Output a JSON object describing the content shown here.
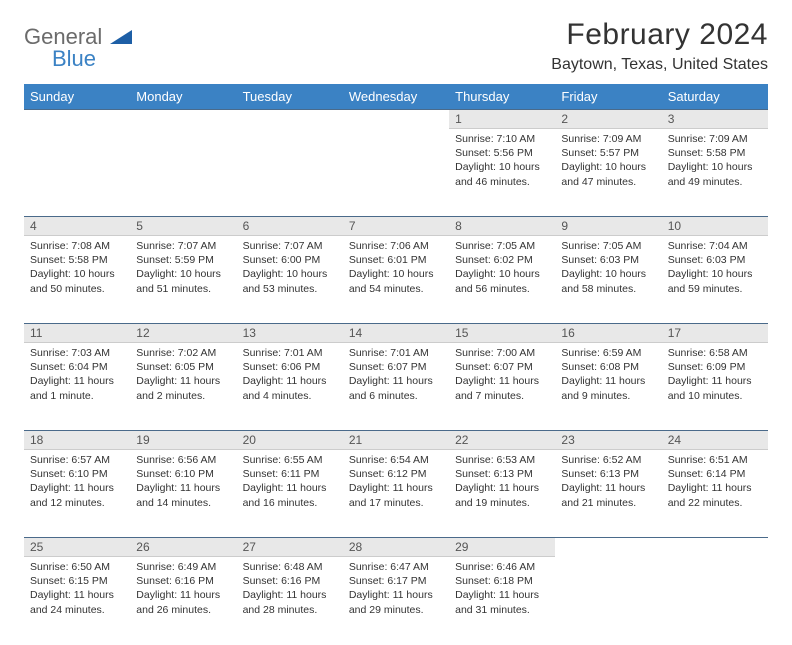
{
  "header": {
    "logo_general": "General",
    "logo_blue": "Blue",
    "month_title": "February 2024",
    "location": "Baytown, Texas, United States"
  },
  "colors": {
    "header_bg": "#3b82c4",
    "daynum_bg": "#e8e8e8",
    "border": "#4a6a8a",
    "logo_gray": "#6b6b6b",
    "logo_blue": "#3b82c4"
  },
  "weekdays": [
    "Sunday",
    "Monday",
    "Tuesday",
    "Wednesday",
    "Thursday",
    "Friday",
    "Saturday"
  ],
  "weeks": [
    [
      null,
      null,
      null,
      null,
      {
        "d": "1",
        "r": "7:10 AM",
        "s": "5:56 PM",
        "dl": "10 hours and 46 minutes."
      },
      {
        "d": "2",
        "r": "7:09 AM",
        "s": "5:57 PM",
        "dl": "10 hours and 47 minutes."
      },
      {
        "d": "3",
        "r": "7:09 AM",
        "s": "5:58 PM",
        "dl": "10 hours and 49 minutes."
      }
    ],
    [
      {
        "d": "4",
        "r": "7:08 AM",
        "s": "5:58 PM",
        "dl": "10 hours and 50 minutes."
      },
      {
        "d": "5",
        "r": "7:07 AM",
        "s": "5:59 PM",
        "dl": "10 hours and 51 minutes."
      },
      {
        "d": "6",
        "r": "7:07 AM",
        "s": "6:00 PM",
        "dl": "10 hours and 53 minutes."
      },
      {
        "d": "7",
        "r": "7:06 AM",
        "s": "6:01 PM",
        "dl": "10 hours and 54 minutes."
      },
      {
        "d": "8",
        "r": "7:05 AM",
        "s": "6:02 PM",
        "dl": "10 hours and 56 minutes."
      },
      {
        "d": "9",
        "r": "7:05 AM",
        "s": "6:03 PM",
        "dl": "10 hours and 58 minutes."
      },
      {
        "d": "10",
        "r": "7:04 AM",
        "s": "6:03 PM",
        "dl": "10 hours and 59 minutes."
      }
    ],
    [
      {
        "d": "11",
        "r": "7:03 AM",
        "s": "6:04 PM",
        "dl": "11 hours and 1 minute."
      },
      {
        "d": "12",
        "r": "7:02 AM",
        "s": "6:05 PM",
        "dl": "11 hours and 2 minutes."
      },
      {
        "d": "13",
        "r": "7:01 AM",
        "s": "6:06 PM",
        "dl": "11 hours and 4 minutes."
      },
      {
        "d": "14",
        "r": "7:01 AM",
        "s": "6:07 PM",
        "dl": "11 hours and 6 minutes."
      },
      {
        "d": "15",
        "r": "7:00 AM",
        "s": "6:07 PM",
        "dl": "11 hours and 7 minutes."
      },
      {
        "d": "16",
        "r": "6:59 AM",
        "s": "6:08 PM",
        "dl": "11 hours and 9 minutes."
      },
      {
        "d": "17",
        "r": "6:58 AM",
        "s": "6:09 PM",
        "dl": "11 hours and 10 minutes."
      }
    ],
    [
      {
        "d": "18",
        "r": "6:57 AM",
        "s": "6:10 PM",
        "dl": "11 hours and 12 minutes."
      },
      {
        "d": "19",
        "r": "6:56 AM",
        "s": "6:10 PM",
        "dl": "11 hours and 14 minutes."
      },
      {
        "d": "20",
        "r": "6:55 AM",
        "s": "6:11 PM",
        "dl": "11 hours and 16 minutes."
      },
      {
        "d": "21",
        "r": "6:54 AM",
        "s": "6:12 PM",
        "dl": "11 hours and 17 minutes."
      },
      {
        "d": "22",
        "r": "6:53 AM",
        "s": "6:13 PM",
        "dl": "11 hours and 19 minutes."
      },
      {
        "d": "23",
        "r": "6:52 AM",
        "s": "6:13 PM",
        "dl": "11 hours and 21 minutes."
      },
      {
        "d": "24",
        "r": "6:51 AM",
        "s": "6:14 PM",
        "dl": "11 hours and 22 minutes."
      }
    ],
    [
      {
        "d": "25",
        "r": "6:50 AM",
        "s": "6:15 PM",
        "dl": "11 hours and 24 minutes."
      },
      {
        "d": "26",
        "r": "6:49 AM",
        "s": "6:16 PM",
        "dl": "11 hours and 26 minutes."
      },
      {
        "d": "27",
        "r": "6:48 AM",
        "s": "6:16 PM",
        "dl": "11 hours and 28 minutes."
      },
      {
        "d": "28",
        "r": "6:47 AM",
        "s": "6:17 PM",
        "dl": "11 hours and 29 minutes."
      },
      {
        "d": "29",
        "r": "6:46 AM",
        "s": "6:18 PM",
        "dl": "11 hours and 31 minutes."
      },
      null,
      null
    ]
  ],
  "labels": {
    "sunrise_prefix": "Sunrise: ",
    "sunset_prefix": "Sunset: ",
    "daylight_prefix": "Daylight: "
  }
}
